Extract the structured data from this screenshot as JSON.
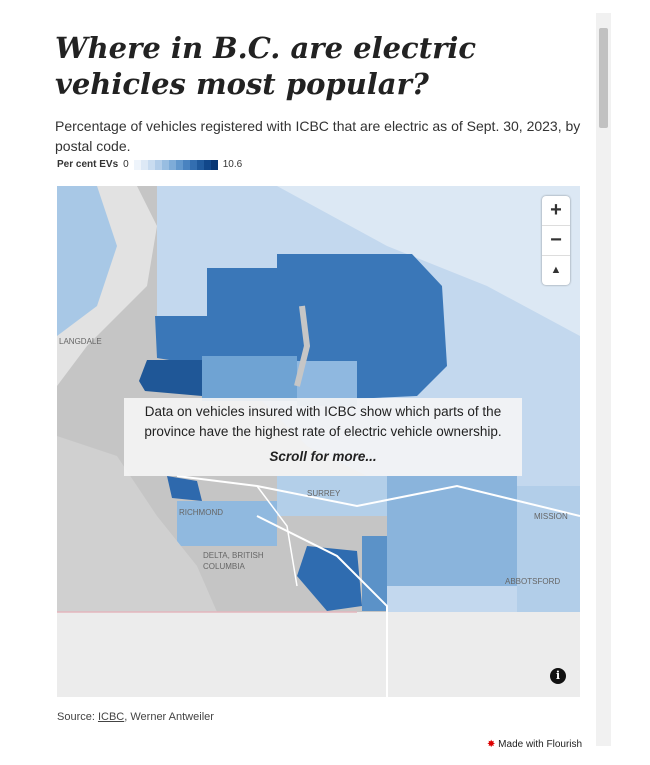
{
  "header": {
    "title": "Where in B.C. are electric vehicles most popular?",
    "subtitle": "Percentage of vehicles registered with ICBC that are electric as of Sept. 30, 2023, by postal code."
  },
  "legend": {
    "label": "Per cent EVs",
    "min": "0",
    "max": "10.6"
  },
  "map": {
    "labels": [
      "LANGDALE",
      "RICHMOND",
      "SURREY",
      "MISSION",
      "ABBOTSFORD",
      "DELTA, BRITISH",
      "COLUMBIA"
    ],
    "controls": [
      "+",
      "−"
    ],
    "overlay": {
      "text": "Data on vehicles insured with ICBC show which parts of the province have the highest rate of electric vehicle ownership.",
      "link": "Scroll for more..."
    }
  },
  "footer": {
    "source_prefix": "Source: ",
    "source_link": "ICBC",
    "source_suffix": ", Werner Antweiler",
    "credit": "Made with Flourish"
  }
}
